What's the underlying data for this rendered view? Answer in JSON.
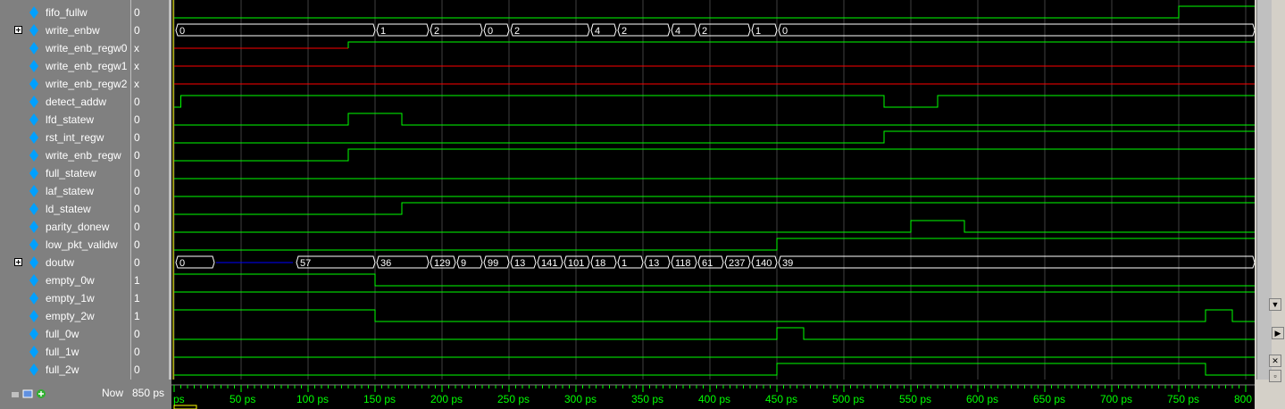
{
  "signals": [
    {
      "name": "fifo_fullw",
      "value": "0",
      "expandable": false
    },
    {
      "name": "write_enbw",
      "value": "0",
      "expandable": true
    },
    {
      "name": "write_enb_regw0",
      "value": "x",
      "expandable": false
    },
    {
      "name": "write_enb_regw1",
      "value": "x",
      "expandable": false
    },
    {
      "name": "write_enb_regw2",
      "value": "x",
      "expandable": false
    },
    {
      "name": "detect_addw",
      "value": "0",
      "expandable": false
    },
    {
      "name": "lfd_statew",
      "value": "0",
      "expandable": false
    },
    {
      "name": "rst_int_regw",
      "value": "0",
      "expandable": false
    },
    {
      "name": "write_enb_regw",
      "value": "0",
      "expandable": false
    },
    {
      "name": "full_statew",
      "value": "0",
      "expandable": false
    },
    {
      "name": "laf_statew",
      "value": "0",
      "expandable": false
    },
    {
      "name": "ld_statew",
      "value": "0",
      "expandable": false
    },
    {
      "name": "parity_donew",
      "value": "0",
      "expandable": false
    },
    {
      "name": "low_pkt_validw",
      "value": "0",
      "expandable": false
    },
    {
      "name": "doutw",
      "value": "0",
      "expandable": true
    },
    {
      "name": "empty_0w",
      "value": "1",
      "expandable": false
    },
    {
      "name": "empty_1w",
      "value": "1",
      "expandable": false
    },
    {
      "name": "empty_2w",
      "value": "1",
      "expandable": false
    },
    {
      "name": "full_0w",
      "value": "0",
      "expandable": false
    },
    {
      "name": "full_1w",
      "value": "0",
      "expandable": false
    },
    {
      "name": "full_2w",
      "value": "0",
      "expandable": false
    }
  ],
  "waveforms": {
    "fifo_fullw": {
      "kind": "bit",
      "init": 0,
      "changes": [
        [
          750,
          1
        ]
      ]
    },
    "detect_addw": {
      "kind": "bit",
      "init": 0,
      "changes": [
        [
          5,
          1
        ],
        [
          530,
          0
        ],
        [
          570,
          1
        ]
      ]
    },
    "lfd_statew": {
      "kind": "bit",
      "init": 0,
      "changes": [
        [
          130,
          1
        ],
        [
          170,
          0
        ]
      ]
    },
    "rst_int_regw": {
      "kind": "bit",
      "init": 0,
      "changes": [
        [
          530,
          1
        ]
      ]
    },
    "write_enb_regw": {
      "kind": "bit",
      "init": 0,
      "changes": [
        [
          130,
          1
        ]
      ]
    },
    "full_statew": {
      "kind": "bit",
      "init": 0,
      "changes": []
    },
    "laf_statew": {
      "kind": "bit",
      "init": 0,
      "changes": []
    },
    "ld_statew": {
      "kind": "bit",
      "init": 0,
      "changes": [
        [
          170,
          1
        ]
      ]
    },
    "parity_donew": {
      "kind": "bit",
      "init": 0,
      "changes": [
        [
          550,
          1
        ],
        [
          590,
          0
        ]
      ]
    },
    "low_pkt_validw": {
      "kind": "bit",
      "init": 0,
      "changes": [
        [
          450,
          1
        ]
      ]
    },
    "empty_0w": {
      "kind": "bit",
      "init": 1,
      "changes": [
        [
          150,
          0
        ]
      ]
    },
    "empty_1w": {
      "kind": "bit",
      "init": 1,
      "changes": []
    },
    "empty_2w": {
      "kind": "bit",
      "init": 1,
      "changes": [
        [
          150,
          0
        ],
        [
          770,
          1
        ],
        [
          790,
          0
        ]
      ]
    },
    "full_0w": {
      "kind": "bit",
      "init": 0,
      "changes": [
        [
          450,
          1
        ],
        [
          470,
          0
        ]
      ]
    },
    "full_1w": {
      "kind": "bit",
      "init": 0,
      "changes": []
    },
    "full_2w": {
      "kind": "bit",
      "init": 0,
      "changes": [
        [
          450,
          1
        ],
        [
          770,
          0
        ]
      ]
    },
    "write_enb_regw0": {
      "kind": "xbit",
      "x_until": 130,
      "after": 1
    },
    "write_enb_regw1": {
      "kind": "xbit",
      "x_until": null
    },
    "write_enb_regw2": {
      "kind": "xbit",
      "x_until": null
    },
    "write_enbw": {
      "kind": "bus",
      "segments": [
        [
          0,
          "0"
        ],
        [
          150,
          "1"
        ],
        [
          190,
          "2"
        ],
        [
          230,
          "0"
        ],
        [
          250,
          "2"
        ],
        [
          310,
          "4"
        ],
        [
          330,
          "2"
        ],
        [
          370,
          "4"
        ],
        [
          390,
          "2"
        ],
        [
          430,
          "1"
        ],
        [
          450,
          "0"
        ]
      ]
    },
    "doutw": {
      "kind": "bus",
      "segments": [
        [
          0,
          "0"
        ],
        [
          30,
          "z"
        ],
        [
          90,
          "57"
        ],
        [
          150,
          "36"
        ],
        [
          190,
          "129"
        ],
        [
          210,
          "9"
        ],
        [
          230,
          "99"
        ],
        [
          250,
          "13"
        ],
        [
          270,
          "141"
        ],
        [
          290,
          "101"
        ],
        [
          310,
          "18"
        ],
        [
          330,
          "1"
        ],
        [
          350,
          "13"
        ],
        [
          370,
          "118"
        ],
        [
          390,
          "61"
        ],
        [
          410,
          "237"
        ],
        [
          430,
          "140"
        ],
        [
          450,
          "39"
        ]
      ]
    }
  },
  "timeline": {
    "now_label": "Now",
    "now_value": "850 ps",
    "ticks": [
      "ps",
      "50 ps",
      "100 ps",
      "150 ps",
      "200 ps",
      "250 ps",
      "300 ps",
      "350 ps",
      "400 ps",
      "450 ps",
      "500 ps",
      "550 ps",
      "600 ps",
      "650 ps",
      "700 ps",
      "750 ps",
      "800 ps"
    ]
  },
  "colors": {
    "high": "#00ff00",
    "xval": "#ff0000",
    "bus_z": "#0000ff",
    "grid": "#404040",
    "bg": "#000000",
    "cursor": "#ffff00",
    "diamond": "#00a0ff"
  }
}
